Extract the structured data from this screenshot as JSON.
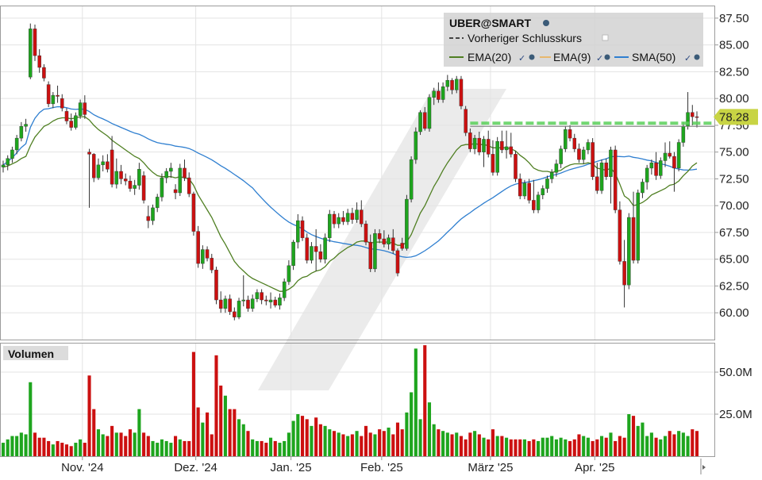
{
  "chart_data": [
    {
      "type": "candlestick",
      "title": "UBER@SMART",
      "legend": [
        {
          "name": "Vorheriger Schlusskurs",
          "style": "dashed",
          "color": "#555555"
        },
        {
          "name": "EMA(20)",
          "color": "#4f7f22"
        },
        {
          "name": "EMA(9)",
          "color": "#e8b86e"
        },
        {
          "name": "SMA(50)",
          "color": "#2f7fd0"
        }
      ],
      "legend_placement": "top-right",
      "last_price_label": "78.28",
      "previous_close": 77.7,
      "y_range": [
        57.5,
        88.6
      ],
      "y_ticks": [
        "87.50",
        "85.00",
        "82.50",
        "80.00",
        "77.50",
        "75.00",
        "72.50",
        "70.00",
        "67.50",
        "65.00",
        "62.50",
        "60.00"
      ],
      "x_ticks": [
        "Nov. '24",
        "Dez. '24",
        "Jan. '25",
        "Feb. '25",
        "März '25",
        "Apr. '25"
      ],
      "grid": true,
      "colors": {
        "up": "#1ea51e",
        "down": "#cc1010",
        "ema20": "#4f7f22",
        "sma50": "#2f7fd0",
        "prev_close": "#5ad15a",
        "price_tag": "#c8d444"
      },
      "ohlc": [
        [
          73.6,
          74.2,
          73.1,
          73.8
        ],
        [
          73.8,
          74.7,
          73.3,
          74.4
        ],
        [
          74.4,
          75.5,
          74.0,
          75.2
        ],
        [
          75.2,
          76.6,
          74.8,
          76.3
        ],
        [
          76.3,
          77.8,
          76.0,
          77.4
        ],
        [
          77.4,
          78.1,
          76.9,
          77.6
        ],
        [
          82.0,
          87.0,
          81.8,
          86.5
        ],
        [
          86.5,
          86.9,
          83.5,
          84.0
        ],
        [
          84.0,
          84.6,
          82.4,
          82.9
        ],
        [
          82.9,
          83.2,
          81.6,
          81.9
        ],
        [
          81.3,
          81.6,
          79.2,
          79.5
        ],
        [
          79.5,
          80.6,
          79.1,
          80.3
        ],
        [
          80.3,
          81.2,
          79.6,
          80.2
        ],
        [
          80.0,
          80.4,
          78.8,
          79.1
        ],
        [
          78.8,
          79.1,
          77.6,
          77.9
        ],
        [
          77.9,
          78.6,
          77.0,
          77.3
        ],
        [
          77.3,
          78.7,
          77.1,
          78.4
        ],
        [
          78.4,
          79.9,
          78.1,
          79.6
        ],
        [
          79.6,
          80.3,
          78.1,
          78.5
        ],
        [
          75.0,
          75.3,
          69.8,
          74.8
        ],
        [
          74.8,
          74.9,
          72.2,
          72.6
        ],
        [
          72.6,
          74.4,
          72.4,
          73.8
        ],
        [
          73.8,
          74.7,
          73.2,
          74.1
        ],
        [
          74.1,
          74.8,
          73.1,
          73.4
        ],
        [
          75.2,
          76.5,
          71.7,
          72.0
        ],
        [
          72.0,
          74.4,
          71.6,
          73.2
        ],
        [
          73.2,
          73.8,
          72.0,
          72.5
        ],
        [
          72.5,
          73.0,
          71.9,
          72.3
        ],
        [
          72.3,
          72.8,
          71.3,
          71.6
        ],
        [
          71.6,
          72.4,
          71.0,
          71.9
        ],
        [
          71.9,
          74.0,
          71.5,
          73.4
        ],
        [
          72.8,
          73.2,
          70.2,
          70.5
        ],
        [
          69.0,
          70.0,
          67.9,
          68.6
        ],
        [
          68.6,
          70.1,
          68.2,
          69.8
        ],
        [
          69.8,
          71.1,
          69.4,
          70.8
        ],
        [
          70.8,
          73.0,
          70.4,
          72.6
        ],
        [
          72.6,
          73.5,
          72.1,
          73.2
        ],
        [
          73.2,
          74.0,
          72.6,
          73.5
        ],
        [
          71.5,
          72.0,
          70.6,
          71.2
        ],
        [
          71.2,
          73.9,
          70.9,
          73.5
        ],
        [
          73.5,
          74.3,
          72.3,
          72.6
        ],
        [
          72.6,
          73.1,
          70.8,
          71.1
        ],
        [
          71.1,
          71.3,
          67.2,
          67.6
        ],
        [
          67.6,
          68.1,
          64.2,
          64.6
        ],
        [
          64.6,
          66.3,
          64.1,
          65.9
        ],
        [
          65.9,
          66.2,
          64.8,
          65.1
        ],
        [
          65.1,
          65.5,
          63.7,
          64.0
        ],
        [
          64.0,
          64.3,
          60.8,
          61.2
        ],
        [
          61.2,
          62.0,
          60.0,
          60.4
        ],
        [
          60.4,
          61.6,
          60.0,
          61.3
        ],
        [
          61.3,
          61.7,
          59.8,
          60.1
        ],
        [
          60.1,
          60.5,
          59.3,
          59.6
        ],
        [
          59.6,
          61.4,
          59.4,
          61.1
        ],
        [
          61.1,
          63.5,
          60.6,
          61.2
        ],
        [
          61.2,
          61.6,
          60.1,
          60.4
        ],
        [
          60.4,
          61.7,
          60.1,
          61.3
        ],
        [
          61.3,
          62.2,
          61.0,
          61.9
        ],
        [
          61.9,
          62.2,
          60.8,
          61.2
        ],
        [
          61.2,
          61.6,
          60.7,
          61.1
        ],
        [
          61.0,
          61.9,
          60.4,
          61.2
        ],
        [
          61.2,
          61.5,
          60.5,
          60.7
        ],
        [
          60.7,
          61.8,
          60.3,
          61.4
        ],
        [
          61.4,
          63.2,
          61.1,
          62.9
        ],
        [
          62.9,
          64.9,
          62.6,
          64.4
        ],
        [
          64.4,
          66.8,
          64.0,
          66.6
        ],
        [
          66.6,
          69.2,
          66.0,
          68.6
        ],
        [
          68.6,
          69.0,
          66.7,
          67.0
        ],
        [
          67.0,
          67.4,
          64.6,
          64.9
        ],
        [
          64.9,
          66.6,
          64.6,
          66.2
        ],
        [
          66.2,
          67.8,
          63.9,
          65.7
        ],
        [
          65.7,
          66.4,
          64.7,
          65.0
        ],
        [
          65.0,
          67.4,
          64.6,
          67.0
        ],
        [
          67.0,
          69.6,
          66.6,
          69.2
        ],
        [
          69.2,
          69.5,
          67.9,
          68.3
        ],
        [
          68.3,
          69.3,
          67.9,
          68.9
        ],
        [
          68.9,
          69.5,
          68.2,
          68.5
        ],
        [
          68.5,
          69.7,
          68.2,
          69.3
        ],
        [
          69.3,
          69.8,
          68.3,
          68.7
        ],
        [
          68.7,
          70.3,
          68.4,
          69.6
        ],
        [
          69.6,
          70.5,
          68.0,
          68.3
        ],
        [
          68.3,
          68.6,
          66.3,
          66.6
        ],
        [
          66.6,
          67.3,
          63.8,
          64.1
        ],
        [
          64.1,
          67.8,
          63.8,
          67.4
        ],
        [
          67.4,
          67.8,
          66.5,
          66.9
        ],
        [
          66.9,
          67.7,
          66.1,
          66.4
        ],
        [
          66.4,
          67.3,
          65.9,
          67.0
        ],
        [
          67.0,
          67.8,
          65.5,
          65.8
        ],
        [
          65.8,
          66.0,
          63.4,
          63.7
        ],
        [
          66.5,
          67.0,
          65.8,
          66.0
        ],
        [
          66.0,
          71.0,
          65.8,
          70.6
        ],
        [
          70.6,
          74.6,
          70.3,
          74.3
        ],
        [
          74.3,
          77.3,
          73.9,
          76.9
        ],
        [
          76.9,
          78.9,
          76.6,
          78.7
        ],
        [
          78.7,
          79.2,
          77.0,
          77.2
        ],
        [
          77.2,
          80.4,
          76.9,
          80.1
        ],
        [
          80.1,
          81.0,
          79.4,
          80.7
        ],
        [
          80.7,
          81.5,
          79.6,
          79.9
        ],
        [
          79.9,
          81.5,
          79.6,
          81.1
        ],
        [
          81.1,
          82.2,
          80.7,
          81.7
        ],
        [
          81.7,
          81.9,
          80.4,
          80.8
        ],
        [
          80.8,
          82.1,
          80.5,
          81.8
        ],
        [
          81.8,
          82.1,
          79.0,
          79.3
        ],
        [
          79.0,
          79.3,
          76.5,
          76.8
        ],
        [
          76.8,
          77.2,
          75.0,
          75.3
        ],
        [
          75.3,
          76.6,
          74.8,
          76.3
        ],
        [
          76.3,
          76.9,
          74.7,
          75.0
        ],
        [
          75.0,
          76.5,
          73.6,
          76.2
        ],
        [
          76.2,
          77.0,
          74.5,
          74.8
        ],
        [
          74.8,
          76.1,
          72.8,
          73.1
        ],
        [
          73.1,
          76.4,
          72.8,
          76.0
        ],
        [
          76.0,
          77.0,
          74.9,
          75.2
        ],
        [
          75.2,
          77.0,
          74.4,
          75.5
        ],
        [
          75.5,
          76.8,
          74.5,
          74.8
        ],
        [
          74.8,
          75.1,
          72.2,
          72.5
        ],
        [
          72.5,
          73.0,
          70.6,
          70.9
        ],
        [
          70.9,
          72.4,
          70.6,
          72.1
        ],
        [
          72.1,
          72.5,
          70.2,
          70.5
        ],
        [
          70.5,
          72.4,
          69.3,
          69.6
        ],
        [
          69.6,
          71.3,
          69.3,
          71.0
        ],
        [
          71.0,
          71.9,
          70.6,
          71.6
        ],
        [
          71.6,
          72.8,
          71.2,
          72.5
        ],
        [
          72.5,
          73.4,
          72.1,
          73.1
        ],
        [
          73.1,
          74.3,
          72.7,
          73.9
        ],
        [
          73.9,
          75.6,
          73.5,
          75.3
        ],
        [
          75.3,
          77.4,
          75.0,
          77.1
        ],
        [
          77.1,
          77.5,
          76.0,
          76.3
        ],
        [
          76.3,
          76.7,
          75.0,
          75.3
        ],
        [
          75.3,
          75.8,
          74.0,
          74.3
        ],
        [
          74.3,
          75.5,
          73.9,
          75.2
        ],
        [
          75.2,
          76.2,
          74.8,
          75.9
        ],
        [
          75.9,
          76.3,
          72.4,
          72.7
        ],
        [
          72.7,
          74.0,
          71.1,
          71.4
        ],
        [
          71.4,
          74.3,
          71.1,
          74.0
        ],
        [
          74.0,
          74.4,
          72.4,
          72.7
        ],
        [
          72.7,
          75.5,
          70.2,
          75.2
        ],
        [
          75.2,
          75.6,
          69.3,
          69.6
        ],
        [
          69.6,
          70.4,
          64.5,
          64.8
        ],
        [
          64.8,
          66.8,
          60.5,
          62.6
        ],
        [
          62.6,
          69.3,
          62.2,
          68.9
        ],
        [
          68.9,
          71.3,
          64.6,
          64.9
        ],
        [
          64.9,
          71.5,
          64.6,
          71.2
        ],
        [
          71.2,
          72.5,
          70.7,
          72.2
        ],
        [
          72.2,
          73.8,
          71.5,
          73.5
        ],
        [
          73.5,
          74.3,
          72.9,
          74.0
        ],
        [
          74.0,
          75.0,
          72.4,
          72.8
        ],
        [
          72.8,
          74.5,
          72.5,
          74.2
        ],
        [
          74.2,
          75.9,
          73.6,
          74.9
        ],
        [
          74.9,
          76.0,
          74.4,
          74.6
        ],
        [
          74.6,
          75.0,
          71.3,
          73.5
        ],
        [
          73.5,
          76.2,
          73.2,
          75.9
        ],
        [
          75.9,
          77.8,
          75.5,
          77.4
        ],
        [
          77.4,
          80.6,
          77.1,
          78.7
        ],
        [
          78.7,
          79.4,
          77.5,
          78.3
        ],
        [
          78.3,
          78.8,
          77.3,
          78.28
        ]
      ],
      "ema20": [
        73.6,
        73.7,
        73.9,
        74.1,
        74.4,
        74.6,
        75.6,
        76.4,
        76.9,
        77.4,
        77.6,
        77.9,
        78.1,
        78.2,
        78.2,
        78.1,
        78.2,
        78.3,
        78.3,
        78.0,
        77.5,
        77.1,
        76.8,
        76.5,
        76.1,
        75.8,
        75.5,
        75.2,
        74.9,
        74.6,
        74.4,
        74.0,
        73.5,
        73.1,
        72.8,
        72.7,
        72.7,
        72.7,
        72.6,
        72.7,
        72.6,
        72.5,
        71.9,
        71.0,
        70.3,
        69.6,
        68.9,
        68.0,
        67.1,
        66.4,
        65.6,
        64.8,
        64.3,
        63.9,
        63.5,
        63.2,
        63.0,
        62.8,
        62.6,
        62.4,
        62.2,
        62.0,
        62.0,
        62.2,
        62.5,
        63.0,
        63.3,
        63.4,
        63.7,
        63.9,
        64.0,
        64.3,
        64.8,
        65.1,
        65.5,
        65.8,
        66.1,
        66.3,
        66.6,
        66.7,
        66.7,
        66.5,
        66.6,
        66.6,
        66.6,
        66.6,
        66.5,
        66.3,
        66.3,
        66.6,
        67.3,
        68.3,
        69.3,
        70.0,
        70.9,
        71.8,
        72.5,
        73.3,
        74.0,
        74.6,
        75.2,
        75.6,
        75.7,
        75.7,
        75.8,
        75.7,
        75.7,
        75.6,
        75.4,
        75.4,
        75.4,
        75.4,
        75.3,
        75.1,
        74.7,
        74.4,
        74.0,
        73.5,
        73.3,
        73.2,
        73.2,
        73.1,
        73.2,
        73.3,
        73.6,
        73.8,
        73.9,
        73.9,
        73.9,
        74.0,
        73.9,
        73.5,
        73.4,
        73.3,
        73.5,
        73.0,
        72.0,
        70.9,
        70.6,
        70.0,
        70.1,
        70.3,
        70.6,
        71.0,
        71.2,
        71.4,
        71.6,
        71.9,
        72.0,
        72.3,
        72.8,
        73.2,
        73.7,
        74.0
      ]
    },
    {
      "type": "bar",
      "title": "Volumen",
      "y_ticks": [
        "50.0M",
        "25.0M"
      ],
      "y_range": [
        0,
        67
      ],
      "unit": "M",
      "volume": [
        8,
        10,
        12,
        12,
        14,
        13,
        44,
        14,
        11,
        11,
        9,
        7,
        9,
        8,
        7,
        6,
        8,
        10,
        8,
        48,
        28,
        16,
        13,
        12,
        18,
        14,
        14,
        12,
        16,
        14,
        28,
        14,
        12,
        9,
        8,
        10,
        9,
        8,
        12,
        10,
        9,
        9,
        62,
        29,
        20,
        26,
        13,
        60,
        42,
        36,
        28,
        28,
        22,
        19,
        15,
        10,
        9,
        9,
        8,
        11,
        9,
        8,
        9,
        14,
        21,
        25,
        24,
        22,
        18,
        23,
        19,
        18,
        16,
        15,
        14,
        13,
        12,
        13,
        15,
        12,
        18,
        14,
        13,
        16,
        15,
        17,
        13,
        20,
        16,
        26,
        38,
        64,
        22,
        66,
        32,
        19,
        16,
        15,
        14,
        13,
        14,
        12,
        10,
        14,
        15,
        13,
        11,
        10,
        16,
        12,
        12,
        11,
        10,
        10,
        10,
        10,
        9,
        10,
        9,
        11,
        11,
        12,
        10,
        11,
        10,
        9,
        10,
        13,
        12,
        11,
        9,
        10,
        12,
        11,
        14,
        9,
        12,
        11,
        25,
        24,
        18,
        20,
        12,
        14,
        11,
        10,
        12,
        15,
        13,
        15,
        14,
        12,
        16,
        15,
        10
      ]
    }
  ]
}
